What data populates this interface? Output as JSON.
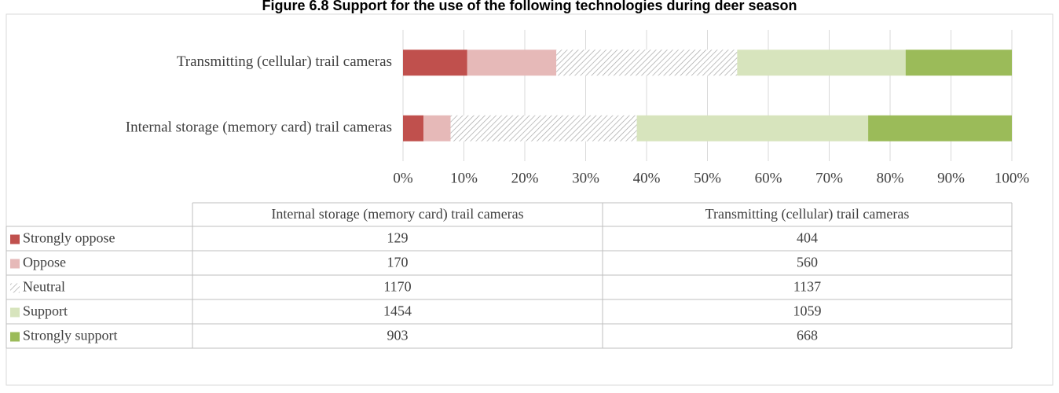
{
  "chart_data": {
    "type": "bar",
    "orientation": "horizontal",
    "stacking": "percent",
    "title": "Figure 6.8 Support for the use of the following technologies during deer season",
    "categories": [
      "Internal storage (memory card) trail cameras",
      "Transmitting (cellular) trail cameras"
    ],
    "series": [
      {
        "name": "Strongly oppose",
        "color": "#c0504d",
        "values": [
          129,
          404
        ]
      },
      {
        "name": "Oppose",
        "color": "#e6b9b8",
        "values": [
          170,
          560
        ]
      },
      {
        "name": "Neutral",
        "color": "#a6a6a6",
        "pattern": "diagonal",
        "values": [
          1170,
          1137
        ]
      },
      {
        "name": "Support",
        "color": "#d7e4bd",
        "values": [
          1454,
          1059
        ]
      },
      {
        "name": "Strongly support",
        "color": "#9bbb59",
        "values": [
          903,
          668
        ]
      }
    ],
    "xlim": [
      0,
      100
    ],
    "xticks": [
      {
        "value": 0,
        "label": "0%"
      },
      {
        "value": 10,
        "label": "10%"
      },
      {
        "value": 20,
        "label": "20%"
      },
      {
        "value": 30,
        "label": "30%"
      },
      {
        "value": 40,
        "label": "40%"
      },
      {
        "value": 50,
        "label": "50%"
      },
      {
        "value": 60,
        "label": "60%"
      },
      {
        "value": 70,
        "label": "70%"
      },
      {
        "value": 80,
        "label": "80%"
      },
      {
        "value": 90,
        "label": "90%"
      },
      {
        "value": 100,
        "label": "100%"
      }
    ],
    "grid": true,
    "data_table": true
  }
}
